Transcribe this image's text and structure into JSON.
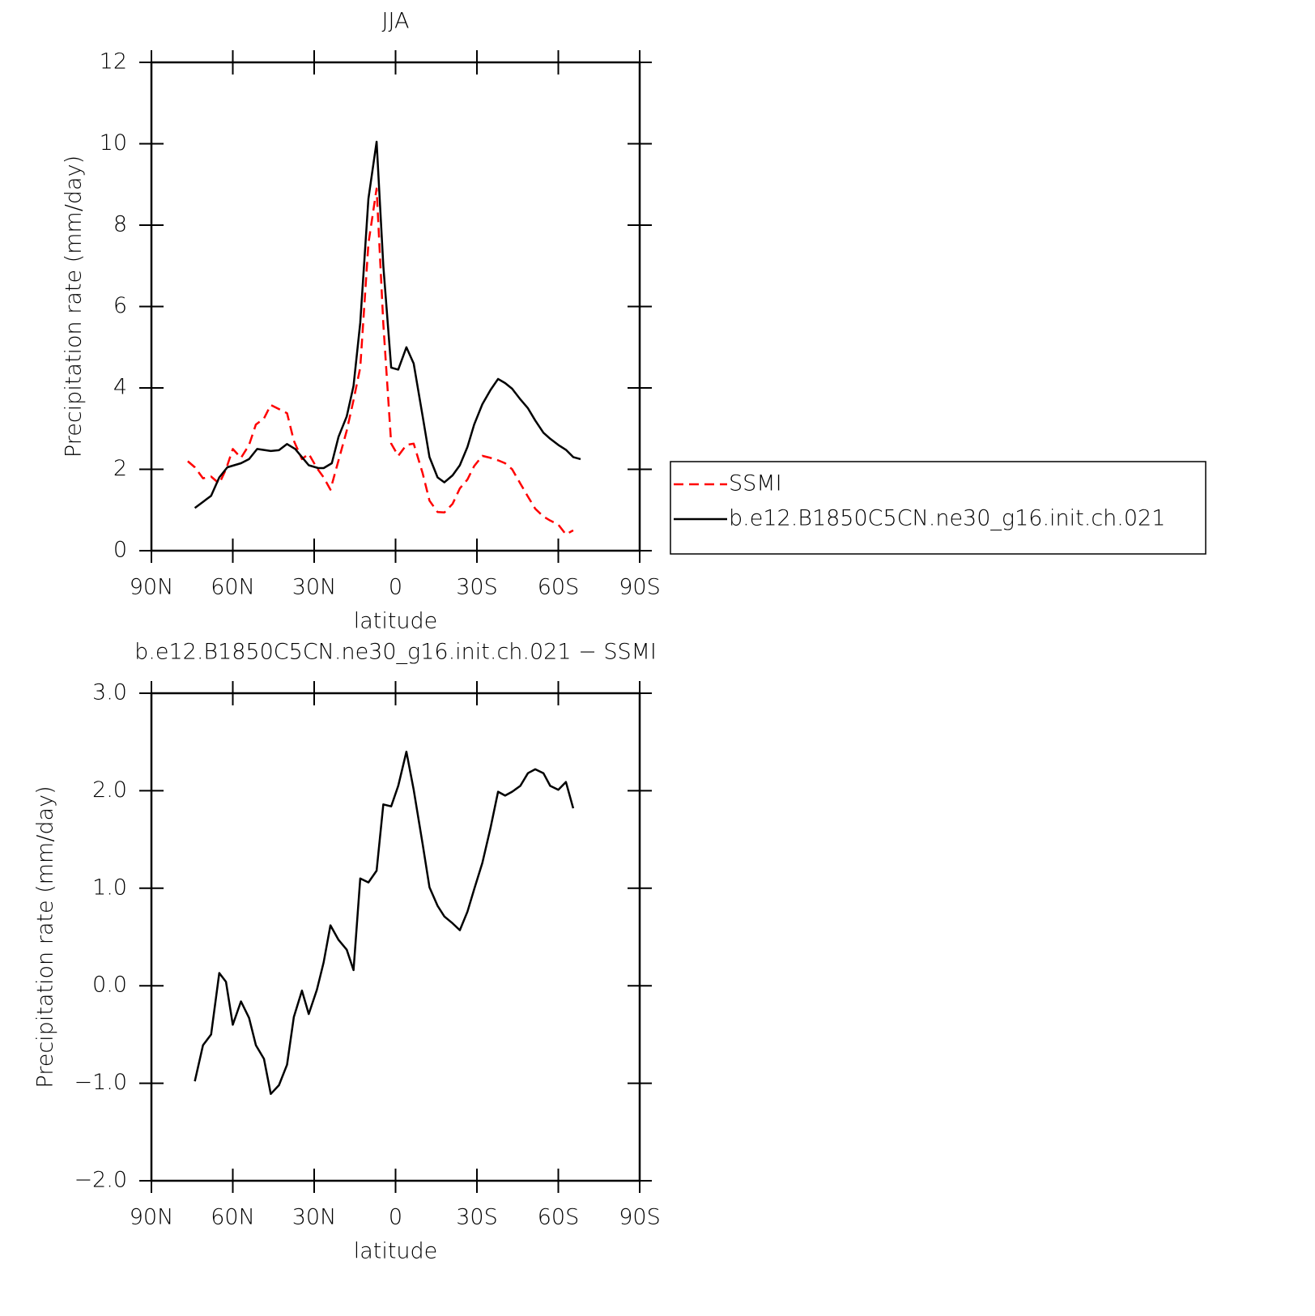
{
  "chart_data": [
    {
      "type": "line",
      "title": "JJA",
      "xlabel": "latitude",
      "ylabel": "Precipitation rate (mm/day)",
      "xlim": [
        90,
        -90
      ],
      "xticks": [
        {
          "value": 90,
          "label": "90N"
        },
        {
          "value": 60,
          "label": "60N"
        },
        {
          "value": 30,
          "label": "30N"
        },
        0,
        {
          "value": -30,
          "label": "30S"
        },
        {
          "value": -60,
          "label": "60S"
        },
        {
          "value": -90,
          "label": "90S"
        }
      ],
      "ylim": [
        0,
        12
      ],
      "yticks": [
        0,
        2,
        4,
        6,
        8,
        10,
        12
      ],
      "legend": "right",
      "series": [
        {
          "name": "SSMI",
          "color": "#ff0000",
          "style": "dashed",
          "x": [
            76.6,
            74,
            71,
            68,
            65,
            62.5,
            60,
            57,
            54,
            51.5,
            48.5,
            46,
            43,
            40,
            37.5,
            34.5,
            32,
            29,
            26.5,
            24,
            21,
            18,
            15.5,
            13,
            10,
            7,
            4.5,
            1.6,
            -1,
            -4,
            -6.7,
            -10,
            -12.5,
            -15.5,
            -18,
            -21,
            -23.7,
            -26.5,
            -29,
            -32,
            -35,
            -37.8,
            -40.4,
            -43,
            -46,
            -48.8,
            -51.5,
            -54.5,
            -57,
            -60,
            -62.8,
            -65.5
          ],
          "values": [
            2.2,
            2.05,
            1.78,
            1.82,
            1.65,
            2.0,
            2.5,
            2.28,
            2.6,
            3.1,
            3.25,
            3.58,
            3.48,
            3.38,
            2.7,
            2.25,
            2.38,
            2.03,
            1.8,
            1.5,
            2.22,
            2.95,
            3.7,
            4.5,
            7.55,
            8.9,
            5.57,
            2.63,
            2.33,
            2.6,
            2.63,
            1.9,
            1.23,
            0.95,
            0.94,
            1.15,
            1.53,
            1.75,
            2.08,
            2.33,
            2.28,
            2.22,
            2.15,
            2.0,
            1.65,
            1.33,
            1.03,
            0.84,
            0.74,
            0.64,
            0.4,
            0.5
          ]
        },
        {
          "name": "b.e12.B1850C5CN.ne30_g16.init.ch.021",
          "color": "#000000",
          "style": "solid",
          "x": [
            74,
            71,
            68,
            65,
            62,
            57,
            54,
            51,
            46,
            43,
            40,
            37,
            34.5,
            32,
            28.5,
            26.5,
            23.5,
            21,
            18,
            15.5,
            13,
            10,
            7,
            4.5,
            1.6,
            -1,
            -4,
            -6.7,
            -10,
            -12.5,
            -15.5,
            -18,
            -21,
            -23.7,
            -26.5,
            -29,
            -32,
            -35,
            -37.8,
            -40.4,
            -43,
            -46,
            -48.8,
            -51.5,
            -54.5,
            -57,
            -60,
            -62.8,
            -65.5,
            -68.2
          ],
          "values": [
            1.05,
            1.2,
            1.35,
            1.8,
            2.05,
            2.15,
            2.25,
            2.5,
            2.45,
            2.47,
            2.62,
            2.5,
            2.3,
            2.1,
            2.03,
            2.03,
            2.15,
            2.8,
            3.3,
            4.05,
            5.6,
            8.65,
            10.05,
            7.0,
            4.5,
            4.45,
            5.0,
            4.6,
            3.3,
            2.3,
            1.8,
            1.68,
            1.85,
            2.1,
            2.55,
            3.1,
            3.6,
            3.95,
            4.22,
            4.12,
            3.98,
            3.72,
            3.5,
            3.2,
            2.9,
            2.75,
            2.6,
            2.48,
            2.3,
            2.25
          ]
        }
      ]
    },
    {
      "type": "line",
      "title": "b.e12.B1850C5CN.ne30_g16.init.ch.021 − SSMI",
      "xlabel": "latitude",
      "ylabel": "Precipitation rate (mm/day)",
      "xlim": [
        90,
        -90
      ],
      "xticks": [
        {
          "value": 90,
          "label": "90N"
        },
        {
          "value": 60,
          "label": "60N"
        },
        {
          "value": 30,
          "label": "30N"
        },
        0,
        {
          "value": -30,
          "label": "30S"
        },
        {
          "value": -60,
          "label": "60S"
        },
        {
          "value": -90,
          "label": "90S"
        }
      ],
      "ylim": [
        -2,
        3
      ],
      "yticks": [
        {
          "value": -2,
          "label": "−2.0"
        },
        {
          "value": -1,
          "label": "−1.0"
        },
        {
          "value": 0,
          "label": "0.0"
        },
        {
          "value": 1,
          "label": "1.0"
        },
        {
          "value": 2,
          "label": "2.0"
        },
        {
          "value": 3,
          "label": "3.0"
        }
      ],
      "color": "#000000",
      "x": [
        74,
        71,
        68,
        65,
        62.5,
        60,
        57,
        54,
        51.5,
        48.5,
        46,
        43,
        40,
        37.5,
        34.5,
        32,
        29,
        26.5,
        24,
        21,
        18,
        15.5,
        13,
        10,
        7,
        4.5,
        1.6,
        -1,
        -4,
        -6.7,
        -10,
        -12.5,
        -15.5,
        -18,
        -21,
        -23.7,
        -26.5,
        -29,
        -32,
        -35,
        -37.8,
        -40.4,
        -43,
        -46,
        -48.8,
        -51.5,
        -54.5,
        -57,
        -60,
        -62.8,
        -65.5
      ],
      "values": [
        -0.98,
        -0.61,
        -0.5,
        0.13,
        0.04,
        -0.4,
        -0.16,
        -0.33,
        -0.61,
        -0.75,
        -1.11,
        -1.02,
        -0.81,
        -0.32,
        -0.05,
        -0.29,
        -0.04,
        0.24,
        0.62,
        0.47,
        0.37,
        0.16,
        1.1,
        1.06,
        1.18,
        1.86,
        1.84,
        2.05,
        2.4,
        2.01,
        1.45,
        1.01,
        0.82,
        0.71,
        0.64,
        0.57,
        0.76,
        0.99,
        1.26,
        1.62,
        1.99,
        1.95,
        1.99,
        2.05,
        2.18,
        2.22,
        2.18,
        2.05,
        2.01,
        2.09,
        1.82
      ]
    }
  ]
}
